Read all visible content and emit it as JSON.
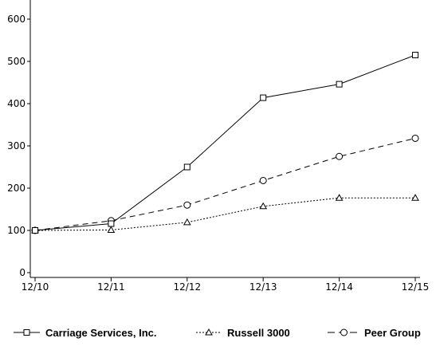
{
  "chart_data": {
    "type": "line",
    "title": "",
    "xlabel": "",
    "ylabel": "",
    "categories": [
      "12/10",
      "12/11",
      "12/12",
      "12/13",
      "12/14",
      "12/15"
    ],
    "ylim": [
      0,
      650
    ],
    "yticks": [
      0,
      100,
      200,
      300,
      400,
      500,
      600
    ],
    "grid": false,
    "legend_position": "bottom",
    "series": [
      {
        "name": "Carriage Services, Inc.",
        "values": [
          100,
          116,
          250,
          414,
          446,
          515
        ],
        "line_style": "solid",
        "marker": "square",
        "color": "#000000"
      },
      {
        "name": "Russell 3000",
        "values": [
          100,
          101,
          119,
          157,
          177,
          177
        ],
        "line_style": "dotted",
        "marker": "triangle",
        "color": "#000000"
      },
      {
        "name": "Peer Group",
        "values": [
          100,
          123,
          160,
          218,
          275,
          318
        ],
        "line_style": "dashed",
        "marker": "circle",
        "color": "#000000"
      }
    ]
  }
}
